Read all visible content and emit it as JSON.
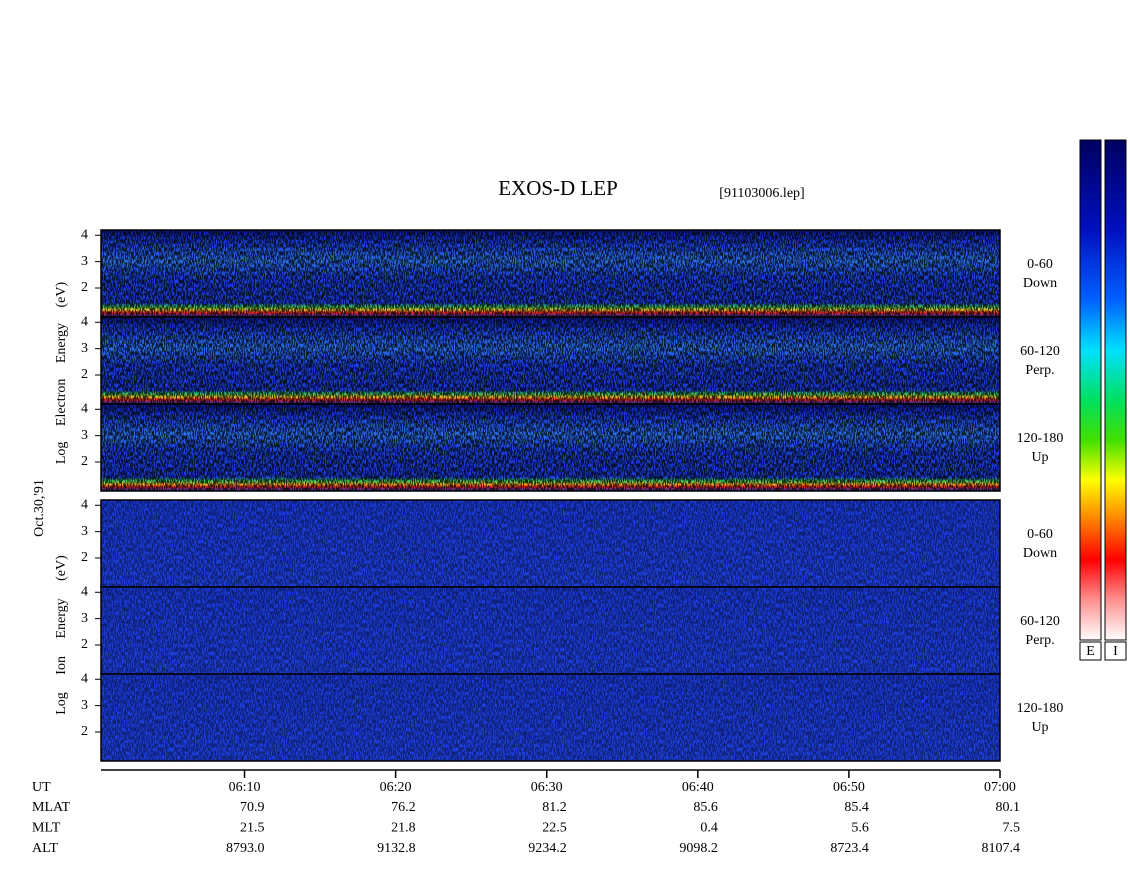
{
  "chart_data": {
    "type": "spectrogram",
    "title": "EXOS-D LEP",
    "subtitle": "[91103006.lep]",
    "date_label": "Oct.30,'91",
    "groups": [
      {
        "ylabel": "Log Electron Energy (eV)",
        "colorbar_label": "E",
        "panels": [
          {
            "angle": "0-60",
            "direction": "Down"
          },
          {
            "angle": "60-120",
            "direction": "Perp."
          },
          {
            "angle": "120-180",
            "direction": "Up"
          }
        ]
      },
      {
        "ylabel": "Log Ion Energy (eV)",
        "colorbar_label": "I",
        "panels": [
          {
            "angle": "0-60",
            "direction": "Down"
          },
          {
            "angle": "60-120",
            "direction": "Perp."
          },
          {
            "angle": "120-180",
            "direction": "Up"
          }
        ]
      }
    ],
    "ylim": [
      0.9,
      4.2
    ],
    "yticks": [
      2,
      3,
      4
    ],
    "xlim": [
      0.5,
      60
    ],
    "xticks": [
      {
        "value": 10,
        "label": "06:10"
      },
      {
        "value": 20,
        "label": "06:20"
      },
      {
        "value": 30,
        "label": "06:30"
      },
      {
        "value": 40,
        "label": "06:40"
      },
      {
        "value": 50,
        "label": "06:50"
      },
      {
        "value": 60,
        "label": "07:00"
      }
    ],
    "orbit": {
      "time_label": "UT",
      "rows": [
        {
          "label": "MLAT",
          "values": [
            "70.9",
            "76.2",
            "81.2",
            "85.6",
            "85.4",
            "80.1"
          ]
        },
        {
          "label": "MLT",
          "values": [
            "21.5",
            "21.8",
            "22.5",
            "0.4",
            "5.6",
            "7.5"
          ]
        },
        {
          "label": "ALT",
          "values": [
            "8793.0",
            "9132.8",
            "9234.2",
            "9098.2",
            "8723.4",
            "8107.4"
          ]
        }
      ]
    }
  }
}
